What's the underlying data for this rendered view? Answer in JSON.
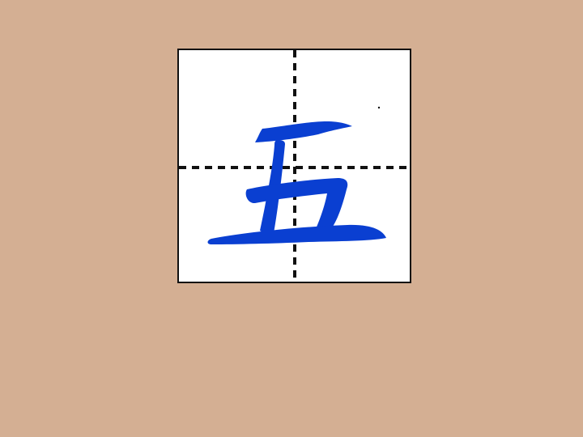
{
  "character": {
    "glyph": "五",
    "color": "#0a3fd1"
  },
  "grid": {
    "border_color": "#111111",
    "guide_color": "#111111",
    "background_color": "#ffffff",
    "guide_style": "dashed"
  },
  "page": {
    "background_color": "#d4af93"
  }
}
